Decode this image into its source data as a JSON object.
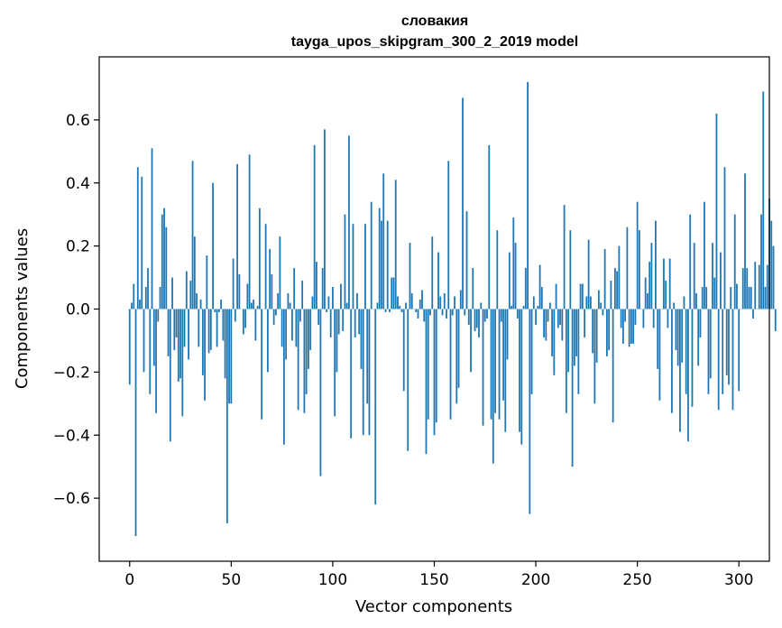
{
  "chart_data": {
    "type": "bar",
    "title_line1": "словакия",
    "title_line2": "tayga_upos_skipgram_300_2_2019 model",
    "xlabel": "Vector components",
    "ylabel": "Components values",
    "xlim": [
      -15,
      315
    ],
    "ylim": [
      -0.8,
      0.8
    ],
    "xticks": [
      0,
      50,
      100,
      150,
      200,
      250,
      300
    ],
    "xtick_labels": [
      "0",
      "50",
      "100",
      "150",
      "200",
      "250",
      "300"
    ],
    "yticks": [
      -0.6,
      -0.4,
      -0.2,
      0.0,
      0.2,
      0.4,
      0.6
    ],
    "ytick_labels": [
      "−0.6",
      "−0.4",
      "−0.2",
      "0.0",
      "0.2",
      "0.4",
      "0.6"
    ],
    "bar_color": "#1f77b4",
    "values": [
      -0.24,
      0.02,
      0.08,
      -0.72,
      0.45,
      0.03,
      0.42,
      -0.2,
      0.07,
      0.13,
      -0.27,
      0.51,
      -0.18,
      -0.33,
      -0.04,
      0.07,
      0.3,
      0.32,
      0.26,
      -0.15,
      -0.42,
      0.1,
      -0.13,
      -0.09,
      -0.23,
      -0.22,
      -0.34,
      -0.12,
      0.12,
      -0.16,
      0.09,
      0.47,
      0.23,
      0.05,
      -0.12,
      0.03,
      -0.21,
      -0.29,
      0.17,
      -0.14,
      -0.13,
      0.4,
      -0.01,
      -0.12,
      -0.01,
      0.03,
      -0.1,
      -0.22,
      -0.68,
      -0.3,
      -0.3,
      0.16,
      -0.04,
      0.46,
      0.11,
      0.0,
      -0.08,
      -0.06,
      0.08,
      0.49,
      0.02,
      0.03,
      -0.1,
      0.01,
      0.32,
      -0.35,
      0.0,
      0.27,
      -0.2,
      0.19,
      0.11,
      -0.05,
      -0.02,
      0.05,
      0.23,
      -0.12,
      -0.43,
      -0.16,
      0.05,
      0.02,
      -0.1,
      0.13,
      -0.12,
      -0.32,
      -0.04,
      0.09,
      -0.33,
      -0.27,
      -0.19,
      -0.13,
      0.04,
      0.52,
      0.15,
      -0.05,
      -0.53,
      0.13,
      0.57,
      -0.01,
      0.04,
      -0.09,
      0.07,
      -0.34,
      -0.2,
      -0.08,
      0.08,
      -0.07,
      0.3,
      0.02,
      0.55,
      -0.41,
      0.27,
      -0.09,
      0.05,
      -0.08,
      -0.19,
      -0.4,
      0.27,
      -0.3,
      -0.4,
      0.34,
      0.0,
      -0.62,
      0.02,
      0.32,
      0.28,
      0.43,
      -0.01,
      0.28,
      -0.01,
      0.1,
      0.1,
      0.41,
      0.04,
      0.01,
      -0.01,
      -0.26,
      0.02,
      -0.45,
      0.21,
      0.05,
      0.0,
      -0.01,
      -0.03,
      0.03,
      0.06,
      -0.04,
      -0.46,
      -0.35,
      -0.02,
      0.23,
      -0.4,
      -0.36,
      0.18,
      0.04,
      -0.02,
      0.05,
      -0.03,
      0.47,
      -0.35,
      -0.02,
      0.04,
      -0.3,
      -0.25,
      0.06,
      0.67,
      -0.02,
      0.31,
      -0.05,
      -0.2,
      0.13,
      -0.07,
      -0.06,
      -0.09,
      0.02,
      -0.37,
      -0.04,
      -0.03,
      0.52,
      -0.35,
      -0.49,
      -0.33,
      0.25,
      -0.35,
      -0.04,
      -0.29,
      -0.39,
      -0.16,
      0.18,
      0.01,
      0.29,
      0.21,
      -0.03,
      -0.39,
      -0.43,
      0.01,
      0.13,
      0.72,
      -0.65,
      -0.27,
      0.04,
      -0.05,
      0.01,
      0.14,
      0.07,
      -0.09,
      -0.1,
      -0.04,
      0.02,
      -0.15,
      -0.21,
      0.08,
      -0.06,
      -0.05,
      -0.1,
      0.33,
      -0.33,
      -0.2,
      0.25,
      -0.5,
      -0.18,
      -0.15,
      -0.27,
      0.08,
      0.08,
      -0.09,
      0.04,
      0.22,
      0.04,
      -0.14,
      -0.3,
      -0.17,
      0.06,
      0.02,
      -0.02,
      0.19,
      -0.15,
      -0.13,
      0.09,
      -0.36,
      0.13,
      0.12,
      0.2,
      -0.06,
      -0.11,
      -0.04,
      0.26,
      -0.12,
      -0.11,
      -0.11,
      -0.05,
      0.34,
      0.25,
      0.0,
      -0.06,
      0.1,
      0.05,
      0.15,
      0.21,
      -0.06,
      0.28,
      -0.19,
      -0.29,
      0.0,
      0.16,
      0.09,
      -0.06,
      0.16,
      -0.33,
      0.02,
      -0.13,
      -0.18,
      -0.39,
      -0.17,
      0.04,
      -0.27,
      -0.42,
      0.3,
      -0.31,
      0.21,
      0.05,
      -0.18,
      -0.09,
      0.07,
      0.34,
      0.07,
      -0.27,
      -0.22,
      0.21,
      0.1,
      0.62,
      -0.32,
      0.18,
      -0.27,
      0.45,
      -0.21,
      -0.24,
      0.07,
      -0.32,
      0.3,
      0.08,
      -0.26,
      0.0,
      0.13,
      0.43,
      0.13,
      0.07,
      0.07,
      -0.03,
      0.15,
      0.0,
      0.14,
      0.3,
      0.69,
      0.07,
      0.14,
      0.35,
      0.28,
      0.2,
      -0.07
    ]
  }
}
